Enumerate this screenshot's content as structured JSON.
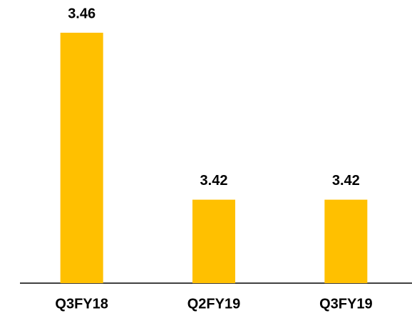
{
  "chart_data": {
    "type": "bar",
    "categories": [
      "Q3FY18",
      "Q2FY19",
      "Q3FY19"
    ],
    "values": [
      3.46,
      3.42,
      3.42
    ],
    "color": "#ffc000",
    "ylim": [
      3.4,
      3.46
    ]
  }
}
